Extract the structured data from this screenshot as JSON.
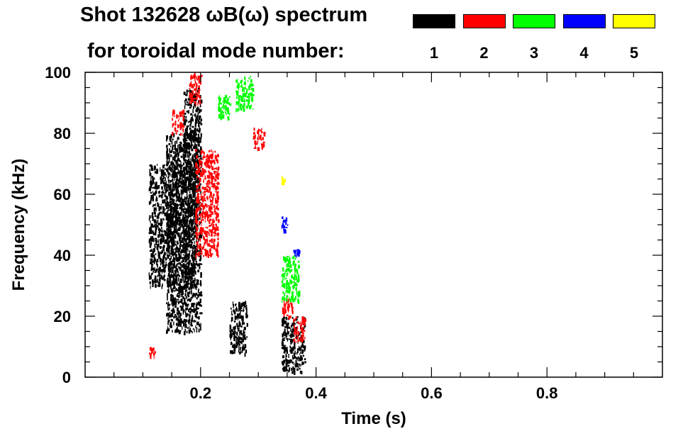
{
  "chart_data": {
    "type": "heatmap",
    "title_line1": "Shot 132628 ωB(ω) spectrum",
    "title_line2": "for toroidal mode number:",
    "xlabel": "Time (s)",
    "ylabel": "Frequency (kHz)",
    "xlim": [
      0.0,
      1.0
    ],
    "ylim": [
      0,
      100
    ],
    "xticks": [
      0.2,
      0.4,
      0.6,
      0.8
    ],
    "xtick_labels": [
      "0.2",
      "0.4",
      "0.6",
      "0.8"
    ],
    "yticks": [
      0,
      20,
      40,
      60,
      80,
      100
    ],
    "ytick_labels": [
      "0",
      "20",
      "40",
      "60",
      "80",
      "100"
    ],
    "grid": false,
    "legend": {
      "placement": "top-right",
      "entries": [
        {
          "label": "1",
          "color": "#000000"
        },
        {
          "label": "2",
          "color": "#ff0000"
        },
        {
          "label": "3",
          "color": "#00ff00"
        },
        {
          "label": "4",
          "color": "#0000ff"
        },
        {
          "label": "5",
          "color": "#ffff00"
        }
      ]
    },
    "regions": [
      {
        "mode": 1,
        "t": [
          0.11,
          0.19
        ],
        "f": [
          30,
          70
        ]
      },
      {
        "mode": 1,
        "t": [
          0.14,
          0.2
        ],
        "f": [
          15,
          80
        ]
      },
      {
        "mode": 1,
        "t": [
          0.17,
          0.2
        ],
        "f": [
          70,
          95
        ]
      },
      {
        "mode": 1,
        "t": [
          0.25,
          0.28
        ],
        "f": [
          8,
          25
        ]
      },
      {
        "mode": 1,
        "t": [
          0.34,
          0.38
        ],
        "f": [
          2,
          20
        ]
      },
      {
        "mode": 2,
        "t": [
          0.18,
          0.2
        ],
        "f": [
          90,
          100
        ]
      },
      {
        "mode": 2,
        "t": [
          0.15,
          0.17
        ],
        "f": [
          80,
          88
        ]
      },
      {
        "mode": 2,
        "t": [
          0.19,
          0.23
        ],
        "f": [
          40,
          75
        ]
      },
      {
        "mode": 2,
        "t": [
          0.29,
          0.31
        ],
        "f": [
          75,
          82
        ]
      },
      {
        "mode": 2,
        "t": [
          0.34,
          0.36
        ],
        "f": [
          20,
          26
        ]
      },
      {
        "mode": 2,
        "t": [
          0.36,
          0.38
        ],
        "f": [
          12,
          20
        ]
      },
      {
        "mode": 2,
        "t": [
          0.11,
          0.12
        ],
        "f": [
          7,
          10
        ]
      },
      {
        "mode": 3,
        "t": [
          0.26,
          0.29
        ],
        "f": [
          88,
          99
        ]
      },
      {
        "mode": 3,
        "t": [
          0.23,
          0.25
        ],
        "f": [
          85,
          93
        ]
      },
      {
        "mode": 3,
        "t": [
          0.34,
          0.37
        ],
        "f": [
          25,
          40
        ]
      },
      {
        "mode": 4,
        "t": [
          0.34,
          0.35
        ],
        "f": [
          48,
          53
        ]
      },
      {
        "mode": 4,
        "t": [
          0.36,
          0.37
        ],
        "f": [
          40,
          42
        ]
      },
      {
        "mode": 5,
        "t": [
          0.34,
          0.345
        ],
        "f": [
          64,
          66
        ]
      }
    ]
  }
}
